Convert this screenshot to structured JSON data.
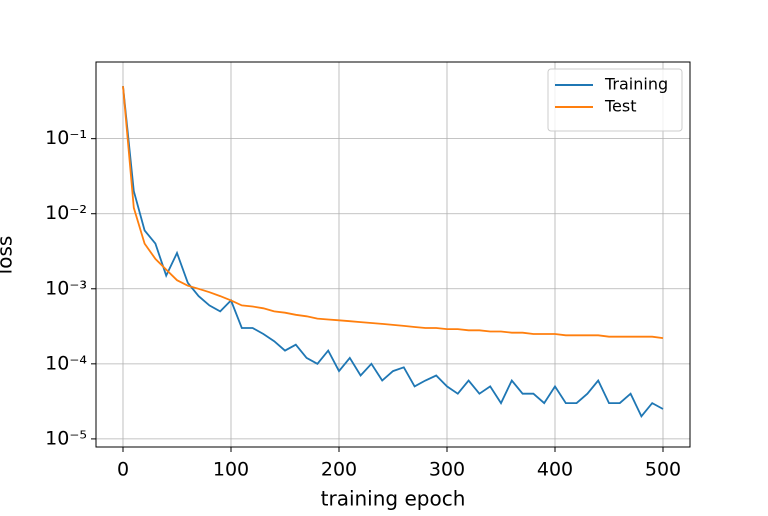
{
  "chart_data": {
    "type": "line",
    "xlabel": "training epoch",
    "ylabel": "loss",
    "x": [
      0,
      10,
      20,
      30,
      40,
      50,
      60,
      70,
      80,
      90,
      100,
      110,
      120,
      130,
      140,
      150,
      160,
      170,
      180,
      190,
      200,
      210,
      220,
      230,
      240,
      250,
      260,
      270,
      280,
      290,
      300,
      310,
      320,
      330,
      340,
      350,
      360,
      370,
      380,
      390,
      400,
      410,
      420,
      430,
      440,
      450,
      460,
      470,
      480,
      490,
      500
    ],
    "series": [
      {
        "name": "Training",
        "color": "#1f77b4",
        "values": [
          0.5,
          0.02,
          0.006,
          0.004,
          0.0015,
          0.003,
          0.0012,
          0.0008,
          0.0006,
          0.0005,
          0.0007,
          0.0003,
          0.0003,
          0.00025,
          0.0002,
          0.00015,
          0.00018,
          0.00012,
          0.0001,
          0.00015,
          8e-05,
          0.00012,
          7e-05,
          0.0001,
          6e-05,
          8e-05,
          9e-05,
          5e-05,
          6e-05,
          7e-05,
          5e-05,
          4e-05,
          6e-05,
          4e-05,
          5e-05,
          3e-05,
          6e-05,
          4e-05,
          4e-05,
          3e-05,
          5e-05,
          3e-05,
          3e-05,
          4e-05,
          6e-05,
          3e-05,
          3e-05,
          4e-05,
          2e-05,
          3e-05,
          2.5e-05
        ]
      },
      {
        "name": "Test",
        "color": "#ff7f0e",
        "values": [
          0.5,
          0.012,
          0.004,
          0.0025,
          0.0018,
          0.0013,
          0.0011,
          0.001,
          0.0009,
          0.0008,
          0.0007,
          0.0006,
          0.00058,
          0.00055,
          0.0005,
          0.00048,
          0.00045,
          0.00043,
          0.0004,
          0.00039,
          0.00038,
          0.00037,
          0.00036,
          0.00035,
          0.00034,
          0.00033,
          0.00032,
          0.00031,
          0.0003,
          0.0003,
          0.00029,
          0.00029,
          0.00028,
          0.00028,
          0.00027,
          0.00027,
          0.00026,
          0.00026,
          0.00025,
          0.00025,
          0.00025,
          0.00024,
          0.00024,
          0.00024,
          0.00024,
          0.00023,
          0.00023,
          0.00023,
          0.00023,
          0.00023,
          0.00022
        ]
      }
    ],
    "xlim": [
      -25,
      525
    ],
    "xticks": [
      0,
      100,
      200,
      300,
      400,
      500
    ],
    "ylim": [
      7.8e-06,
      1.05
    ],
    "ylog": true,
    "yticks": [
      {
        "value": 1e-05,
        "label": "10⁻⁵"
      },
      {
        "value": 0.0001,
        "label": "10⁻⁴"
      },
      {
        "value": 0.001,
        "label": "10⁻³"
      },
      {
        "value": 0.01,
        "label": "10⁻²"
      },
      {
        "value": 0.1,
        "label": "10⁻¹"
      }
    ],
    "grid": true,
    "legend": "upper right"
  }
}
